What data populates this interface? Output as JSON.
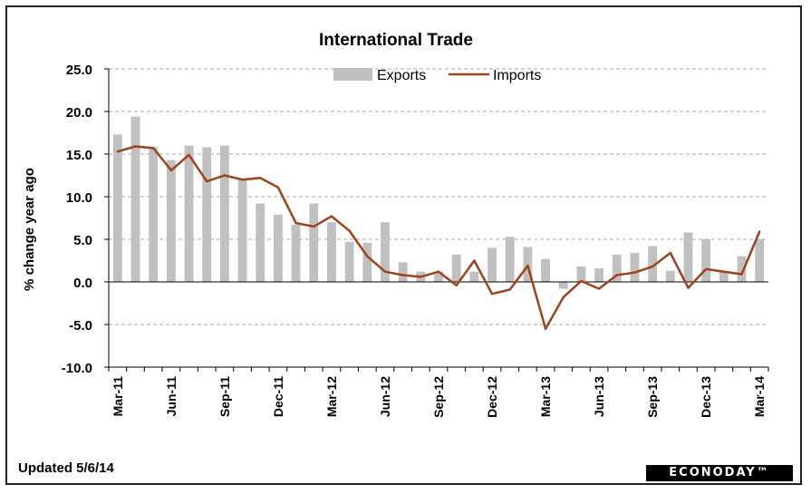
{
  "chart_data": {
    "type": "bar",
    "title": "International Trade",
    "ylabel": "% change year ago",
    "xlabel": "",
    "ylim": [
      -10,
      25
    ],
    "yticks": [
      "25.0",
      "20.0",
      "15.0",
      "10.0",
      "5.0",
      "0.0",
      "-5.0",
      "-10.0"
    ],
    "grid": true,
    "legend_position": "top-center",
    "categories": [
      "Mar-11",
      "Apr-11",
      "May-11",
      "Jun-11",
      "Jul-11",
      "Aug-11",
      "Sep-11",
      "Oct-11",
      "Nov-11",
      "Dec-11",
      "Jan-12",
      "Feb-12",
      "Mar-12",
      "Apr-12",
      "May-12",
      "Jun-12",
      "Jul-12",
      "Aug-12",
      "Sep-12",
      "Oct-12",
      "Nov-12",
      "Dec-12",
      "Jan-13",
      "Feb-13",
      "Mar-13",
      "Apr-13",
      "May-13",
      "Jun-13",
      "Jul-13",
      "Aug-13",
      "Sep-13",
      "Oct-13",
      "Nov-13",
      "Dec-13",
      "Jan-14",
      "Feb-14",
      "Mar-14"
    ],
    "xtick_labels": [
      "Mar-11",
      "Jun-11",
      "Sep-11",
      "Dec-11",
      "Mar-12",
      "Jun-12",
      "Sep-12",
      "Dec-12",
      "Mar-13",
      "Jun-13",
      "Sep-13",
      "Dec-13",
      "Mar-14"
    ],
    "series": [
      {
        "name": "Exports",
        "type": "bar",
        "color": "#c0c0c0",
        "values": [
          17.3,
          19.4,
          15.8,
          14.3,
          16.0,
          15.8,
          16.0,
          12.0,
          9.2,
          7.9,
          6.7,
          9.2,
          7.0,
          4.7,
          4.6,
          7.0,
          2.3,
          1.2,
          1.2,
          3.2,
          1.2,
          4.0,
          5.3,
          4.1,
          2.7,
          -0.8,
          1.8,
          1.6,
          3.2,
          3.4,
          4.2,
          1.3,
          5.8,
          5.0,
          1.2,
          3.0,
          5.0
        ]
      },
      {
        "name": "Imports",
        "type": "line",
        "color": "#a0421c",
        "values": [
          15.3,
          15.9,
          15.7,
          13.1,
          14.9,
          11.8,
          12.5,
          12.0,
          12.2,
          11.1,
          6.9,
          6.5,
          7.7,
          6.0,
          3.0,
          1.2,
          0.8,
          0.6,
          1.2,
          -0.4,
          2.5,
          -1.4,
          -0.9,
          1.9,
          -5.5,
          -1.8,
          0.1,
          -0.8,
          0.8,
          1.1,
          1.8,
          3.4,
          -0.7,
          1.5,
          1.2,
          0.9,
          5.9
        ]
      }
    ]
  },
  "footer": {
    "updated_label": "Updated  5/6/14"
  },
  "brand": {
    "name": "ECONODAY™"
  }
}
